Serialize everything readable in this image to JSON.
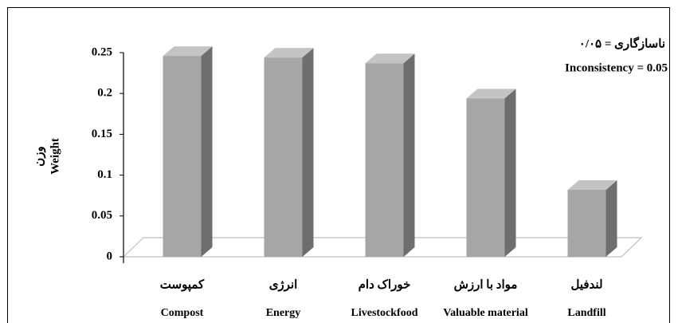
{
  "chart_data": {
    "type": "bar3d",
    "categories": [
      "کمپوست",
      "انرژی",
      "خوراک دام",
      "مواد با ارزش",
      "لندفیل"
    ],
    "category_subtitles": [
      "Compost",
      "Energy",
      "Livestockfood",
      "Valuable material",
      "Landfill"
    ],
    "values": [
      0.246,
      0.244,
      0.237,
      0.194,
      0.082
    ],
    "color": "#a6a6a6",
    "ylabel": [
      "وزن",
      "Weight"
    ],
    "annotations": [
      "ناسازگاری = ۰/۰۵",
      "Inconsistency = 0.05"
    ],
    "ylim": [
      0,
      0.25
    ],
    "yticks": [
      0,
      0.05,
      0.1,
      0.15,
      0.2,
      0.25
    ]
  }
}
